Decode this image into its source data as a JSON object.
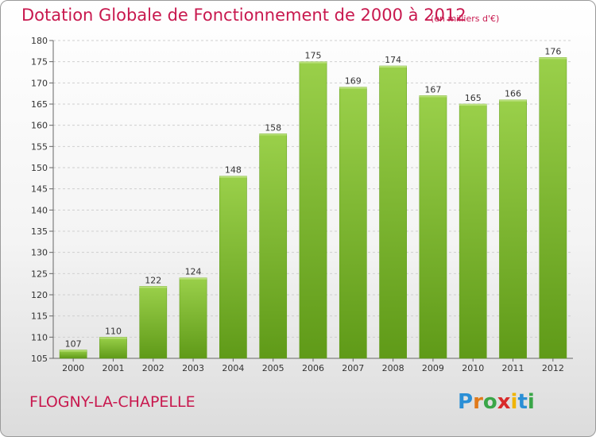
{
  "chart_data": {
    "type": "bar",
    "title": "Dotation Globale de Fonctionnement de 2000 à 2012",
    "subtitle": "(en milliers d'€)",
    "categories": [
      "2000",
      "2001",
      "2002",
      "2003",
      "2004",
      "2005",
      "2006",
      "2007",
      "2008",
      "2009",
      "2010",
      "2011",
      "2012"
    ],
    "values": [
      107,
      110,
      122,
      124,
      148,
      158,
      175,
      169,
      174,
      167,
      165,
      166,
      176
    ],
    "ylim": [
      105,
      180
    ],
    "yticks": [
      105,
      110,
      115,
      120,
      125,
      130,
      135,
      140,
      145,
      150,
      155,
      160,
      165,
      170,
      175,
      180
    ],
    "grid": true,
    "bar_color": "#7cb82f",
    "bar_color_light": "#9ad04a",
    "bar_color_dark": "#5f9a18"
  },
  "footer": {
    "commune": "FLOGNY-LA-CHAPELLE"
  },
  "logo": {
    "text": "Proxiti",
    "letters": [
      {
        "ch": "P",
        "color": "#2a8fd6"
      },
      {
        "ch": "r",
        "color": "#e07a1a"
      },
      {
        "ch": "o",
        "color": "#3aa648"
      },
      {
        "ch": "x",
        "color": "#d82a2a"
      },
      {
        "ch": "i",
        "color": "#f0b400"
      },
      {
        "ch": "t",
        "color": "#2a8fd6"
      },
      {
        "ch": "i",
        "color": "#3aa648"
      }
    ]
  }
}
